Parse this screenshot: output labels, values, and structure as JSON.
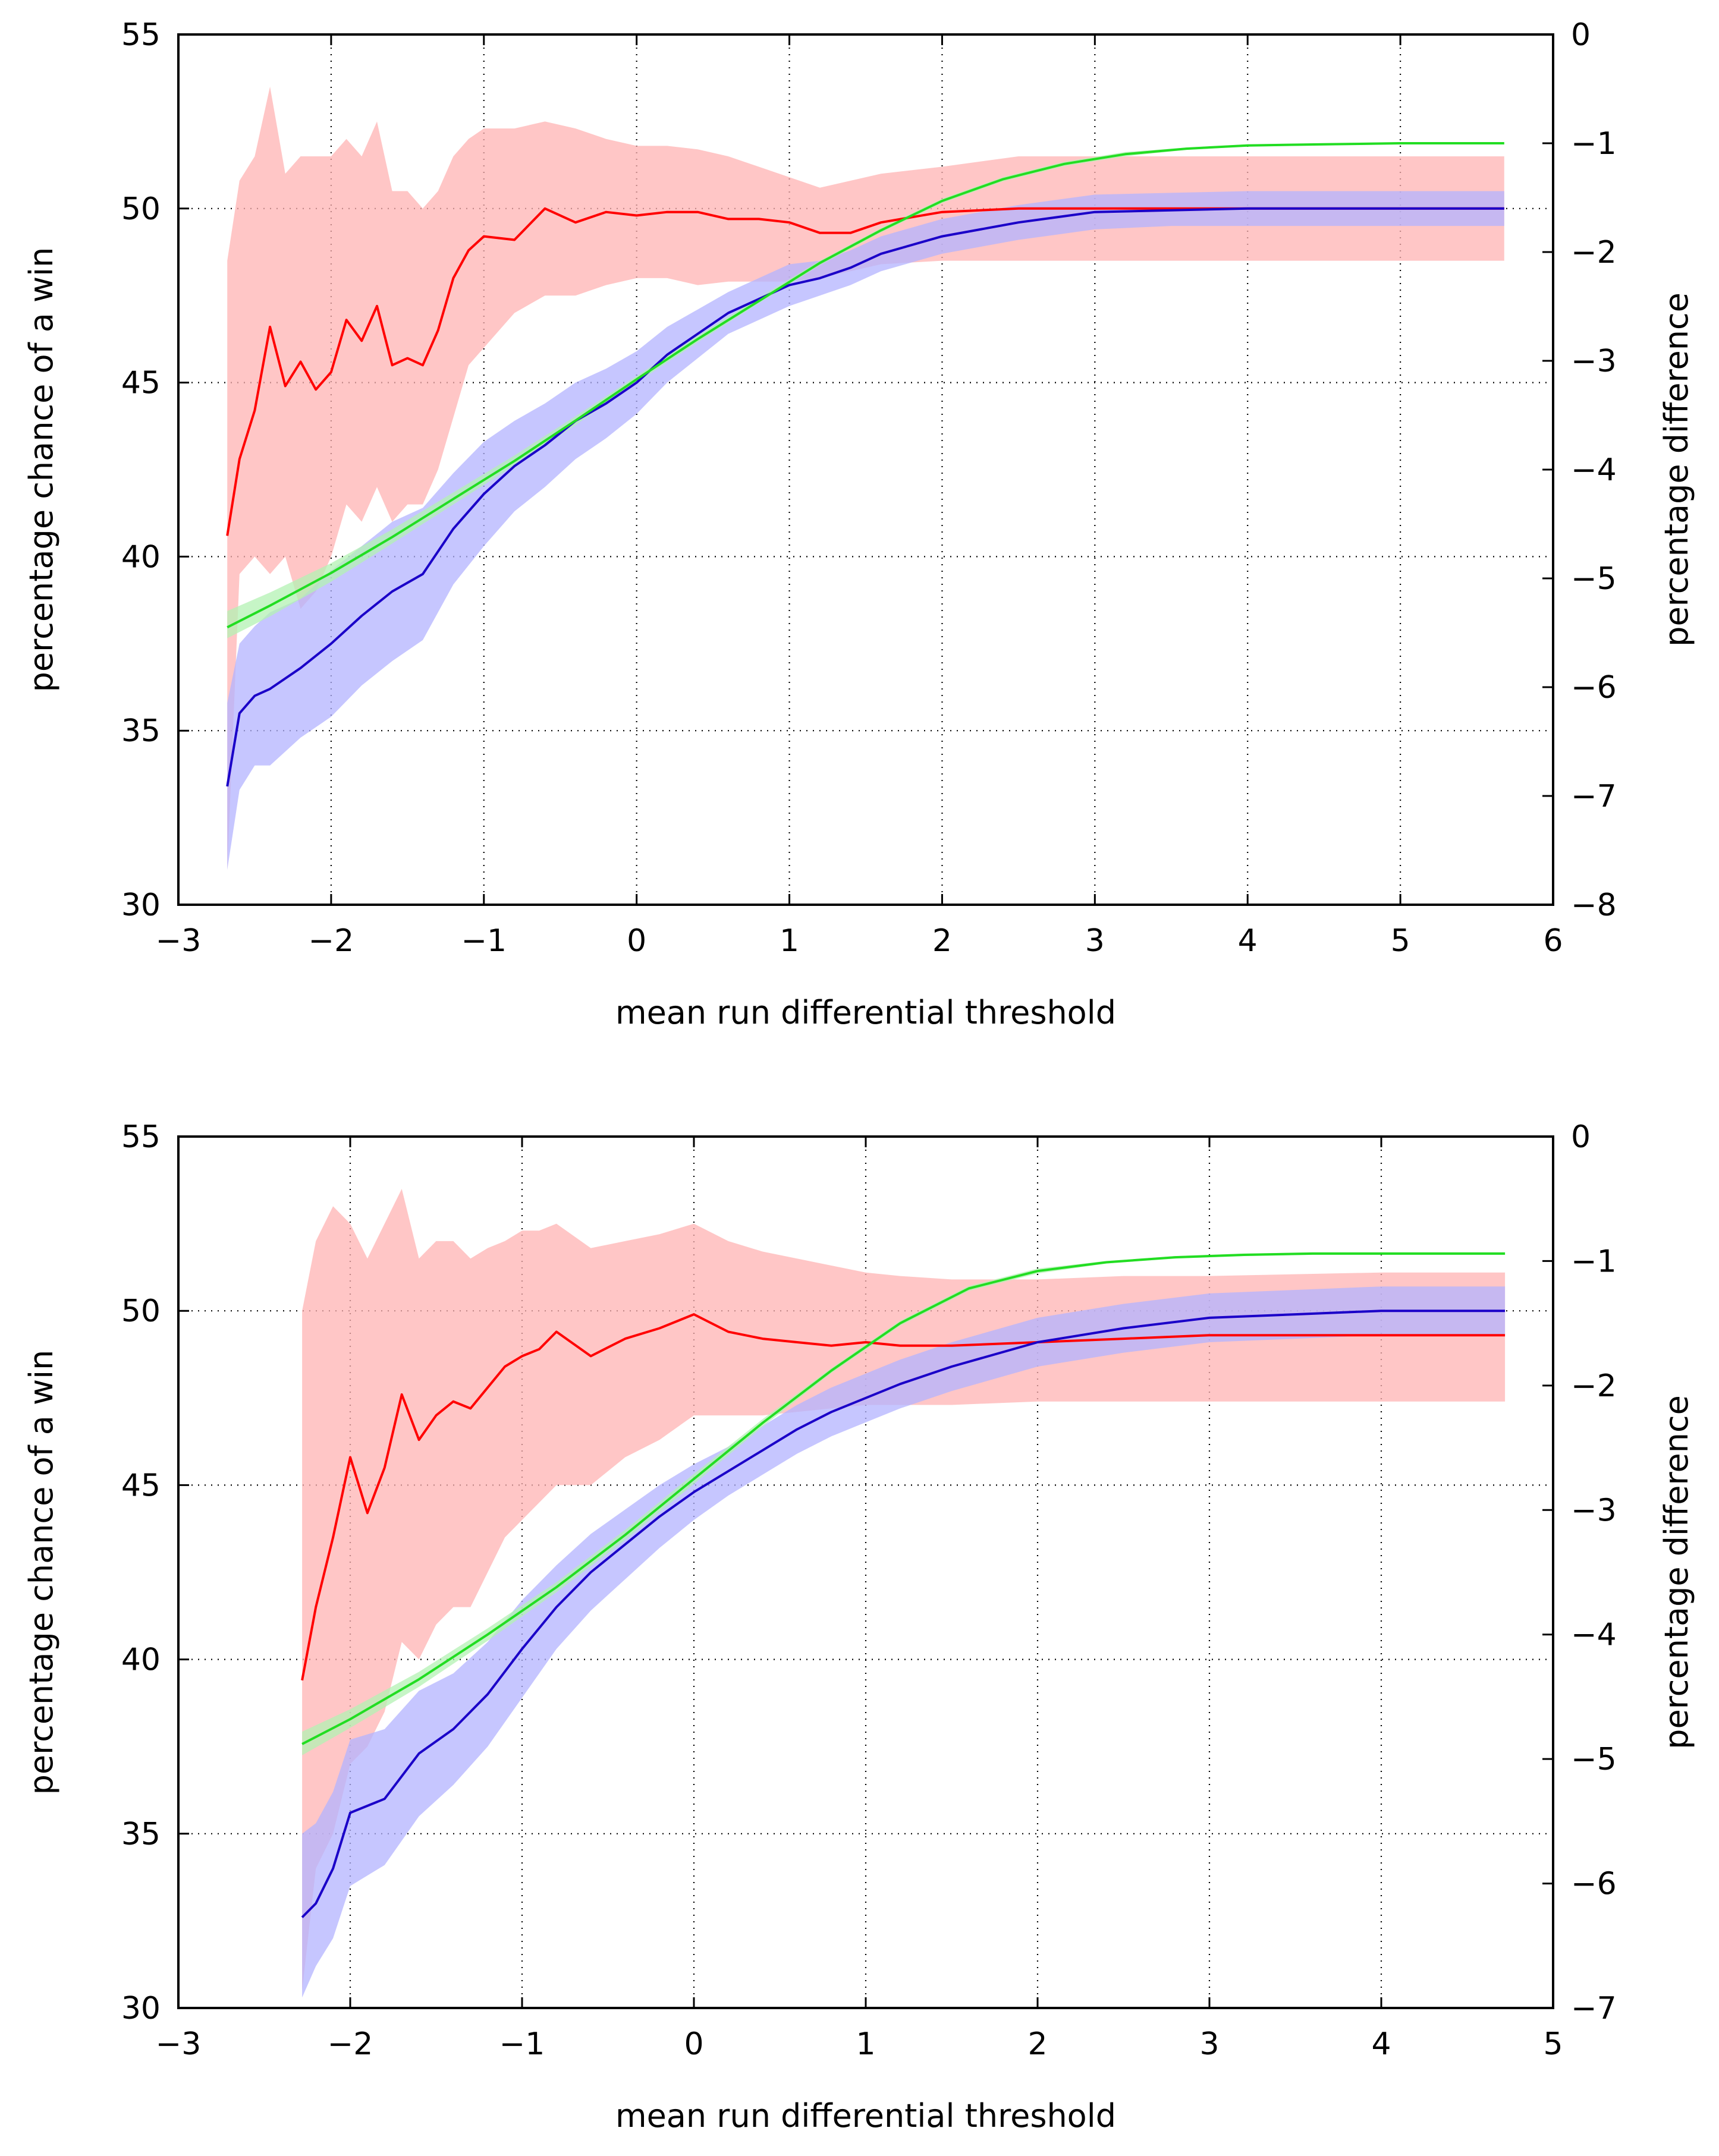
{
  "chart_data": [
    {
      "type": "line",
      "xlabel": "mean run differential threshold",
      "ylabel": "percentage chance of a win",
      "y2label": "percentage difference",
      "xlim": [
        -3,
        6
      ],
      "ylim": [
        30,
        55
      ],
      "y2lim": [
        -8,
        0
      ],
      "xticks": [
        -3,
        -2,
        -1,
        0,
        1,
        2,
        3,
        4,
        5,
        6
      ],
      "yticks": [
        30,
        35,
        40,
        45,
        50,
        55
      ],
      "y2ticks": [
        -8,
        -7,
        -6,
        -5,
        -4,
        -3,
        -2,
        -1,
        0
      ],
      "xtick_labels": [
        "−3",
        "−2",
        "−1",
        "0",
        "1",
        "2",
        "3",
        "4",
        "5",
        "6"
      ],
      "ytick_labels": [
        "30",
        "35",
        "40",
        "45",
        "50",
        "55"
      ],
      "y2tick_labels": [
        "−8",
        "−7",
        "−6",
        "−5",
        "−4",
        "−3",
        "−2",
        "−1",
        "0"
      ],
      "grid": true,
      "series": [
        {
          "name": "red",
          "axis": "left",
          "color": "#ff0000",
          "band_color": "#ffb3b3",
          "x": [
            -2.68,
            -2.6,
            -2.5,
            -2.4,
            -2.3,
            -2.2,
            -2.1,
            -2.0,
            -1.9,
            -1.8,
            -1.7,
            -1.6,
            -1.5,
            -1.4,
            -1.3,
            -1.2,
            -1.1,
            -1.0,
            -0.8,
            -0.6,
            -0.4,
            -0.2,
            0.0,
            0.2,
            0.4,
            0.6,
            0.8,
            1.0,
            1.2,
            1.4,
            1.6,
            2.0,
            2.5,
            3.0,
            4.0,
            5.0,
            5.68
          ],
          "y": [
            40.6,
            42.8,
            44.2,
            46.6,
            44.9,
            45.6,
            44.8,
            45.3,
            46.8,
            46.2,
            47.2,
            45.5,
            45.7,
            45.5,
            46.5,
            48.0,
            48.8,
            49.2,
            49.1,
            50.0,
            49.6,
            49.9,
            49.8,
            49.9,
            49.9,
            49.7,
            49.7,
            49.6,
            49.3,
            49.3,
            49.6,
            49.9,
            50.0,
            50.0,
            50.0,
            50.0,
            50.0
          ],
          "lower": [
            31.0,
            39.5,
            40.0,
            39.5,
            40.0,
            38.5,
            39.0,
            40.0,
            41.5,
            41.0,
            42.0,
            41.0,
            41.5,
            41.5,
            42.5,
            44.0,
            45.5,
            46.0,
            47.0,
            47.5,
            47.5,
            47.8,
            48.0,
            48.0,
            47.8,
            47.9,
            47.9,
            47.9,
            48.0,
            48.2,
            48.4,
            48.5,
            48.5,
            48.5,
            48.5,
            48.5,
            48.5
          ],
          "upper": [
            48.5,
            50.8,
            51.5,
            53.5,
            51.0,
            51.5,
            51.5,
            51.5,
            52.0,
            51.5,
            52.5,
            50.5,
            50.5,
            50.0,
            50.5,
            51.5,
            52.0,
            52.3,
            52.3,
            52.5,
            52.3,
            52.0,
            51.8,
            51.8,
            51.7,
            51.5,
            51.2,
            50.9,
            50.6,
            50.8,
            51.0,
            51.2,
            51.5,
            51.5,
            51.5,
            51.5,
            51.5
          ]
        },
        {
          "name": "blue",
          "axis": "left",
          "color": "#1a00c8",
          "band_color": "#b3b3ff",
          "x": [
            -2.68,
            -2.6,
            -2.5,
            -2.4,
            -2.2,
            -2.0,
            -1.8,
            -1.6,
            -1.4,
            -1.2,
            -1.0,
            -0.8,
            -0.6,
            -0.4,
            -0.2,
            0.0,
            0.2,
            0.4,
            0.6,
            0.8,
            1.0,
            1.2,
            1.4,
            1.6,
            2.0,
            2.5,
            3.0,
            3.5,
            4.0,
            5.0,
            5.68
          ],
          "y": [
            33.4,
            35.5,
            36.0,
            36.2,
            36.8,
            37.5,
            38.3,
            39.0,
            39.5,
            40.8,
            41.8,
            42.6,
            43.2,
            43.9,
            44.4,
            45.0,
            45.8,
            46.4,
            47.0,
            47.4,
            47.8,
            48.0,
            48.3,
            48.7,
            49.2,
            49.6,
            49.9,
            49.95,
            50.0,
            50.0,
            50.0
          ],
          "lower": [
            31.0,
            33.3,
            34.0,
            34.0,
            34.8,
            35.4,
            36.3,
            37.0,
            37.6,
            39.2,
            40.3,
            41.3,
            42.0,
            42.8,
            43.4,
            44.1,
            45.0,
            45.7,
            46.4,
            46.8,
            47.2,
            47.5,
            47.8,
            48.2,
            48.7,
            49.1,
            49.4,
            49.5,
            49.5,
            49.5,
            49.5
          ],
          "upper": [
            35.8,
            37.5,
            38.0,
            38.4,
            38.8,
            39.6,
            40.3,
            41.0,
            41.4,
            42.4,
            43.3,
            43.9,
            44.4,
            45.0,
            45.4,
            45.9,
            46.6,
            47.1,
            47.6,
            48.0,
            48.4,
            48.5,
            48.8,
            49.2,
            49.7,
            50.1,
            50.4,
            50.45,
            50.5,
            50.5,
            50.5
          ]
        },
        {
          "name": "green",
          "axis": "right",
          "color": "#22dd22",
          "band_color": "#b3f2b3",
          "x": [
            -2.68,
            -2.4,
            -2.0,
            -1.6,
            -1.2,
            -0.8,
            -0.4,
            0.0,
            0.4,
            0.8,
            1.2,
            1.6,
            2.0,
            2.4,
            2.8,
            3.2,
            3.6,
            4.0,
            4.5,
            5.0,
            5.68
          ],
          "y": [
            -5.45,
            -5.25,
            -4.95,
            -4.62,
            -4.27,
            -3.92,
            -3.55,
            -3.17,
            -2.8,
            -2.45,
            -2.1,
            -1.8,
            -1.53,
            -1.33,
            -1.19,
            -1.1,
            -1.05,
            -1.02,
            -1.01,
            -1.0,
            -1.0
          ],
          "lower": [
            -5.55,
            -5.35,
            -5.03,
            -4.68,
            -4.32,
            -3.96,
            -3.59,
            -3.2,
            -2.83,
            -2.47,
            -2.12,
            -1.82,
            -1.55,
            -1.35,
            -1.21,
            -1.12,
            -1.06,
            -1.03,
            -1.02,
            -1.01,
            -1.01
          ],
          "upper": [
            -5.3,
            -5.13,
            -4.86,
            -4.55,
            -4.21,
            -3.87,
            -3.51,
            -3.14,
            -2.77,
            -2.42,
            -2.08,
            -1.78,
            -1.51,
            -1.31,
            -1.17,
            -1.08,
            -1.04,
            -1.01,
            -1.0,
            -0.99,
            -0.99
          ]
        }
      ]
    },
    {
      "type": "line",
      "xlabel": "mean run differential threshold",
      "ylabel": "percentage chance of a win",
      "y2label": "percentage difference",
      "xlim": [
        -3,
        5
      ],
      "ylim": [
        30,
        55
      ],
      "y2lim": [
        -7,
        0
      ],
      "xticks": [
        -3,
        -2,
        -1,
        0,
        1,
        2,
        3,
        4,
        5
      ],
      "yticks": [
        30,
        35,
        40,
        45,
        50,
        55
      ],
      "y2ticks": [
        -7,
        -6,
        -5,
        -4,
        -3,
        -2,
        -1,
        0
      ],
      "xtick_labels": [
        "−3",
        "−2",
        "−1",
        "0",
        "1",
        "2",
        "3",
        "4",
        "5"
      ],
      "ytick_labels": [
        "30",
        "35",
        "40",
        "45",
        "50",
        "55"
      ],
      "y2tick_labels": [
        "−7",
        "−6",
        "−5",
        "−4",
        "−3",
        "−2",
        "−1",
        "0"
      ],
      "grid": true,
      "series": [
        {
          "name": "red",
          "axis": "left",
          "color": "#ff0000",
          "band_color": "#ffb3b3",
          "x": [
            -2.28,
            -2.2,
            -2.1,
            -2.0,
            -1.9,
            -1.8,
            -1.7,
            -1.6,
            -1.5,
            -1.4,
            -1.3,
            -1.2,
            -1.1,
            -1.0,
            -0.9,
            -0.8,
            -0.6,
            -0.4,
            -0.2,
            0.0,
            0.2,
            0.4,
            0.6,
            0.8,
            1.0,
            1.2,
            1.5,
            2.0,
            2.5,
            3.0,
            4.0,
            4.72
          ],
          "y": [
            39.4,
            41.5,
            43.5,
            45.8,
            44.2,
            45.5,
            47.6,
            46.3,
            47.0,
            47.4,
            47.2,
            47.8,
            48.4,
            48.7,
            48.9,
            49.4,
            48.7,
            49.2,
            49.5,
            49.9,
            49.4,
            49.2,
            49.1,
            49.0,
            49.1,
            49.0,
            49.0,
            49.1,
            49.2,
            49.3,
            49.3,
            49.3
          ],
          "lower": [
            30.5,
            34.0,
            35.0,
            37.0,
            37.5,
            38.5,
            40.5,
            40.0,
            41.0,
            41.5,
            41.5,
            42.5,
            43.5,
            44.0,
            44.5,
            45.0,
            45.0,
            45.8,
            46.3,
            47.0,
            47.0,
            47.0,
            47.1,
            47.2,
            47.3,
            47.3,
            47.3,
            47.4,
            47.4,
            47.4,
            47.4,
            47.4
          ],
          "upper": [
            50.0,
            52.0,
            53.0,
            52.5,
            51.5,
            52.5,
            53.5,
            51.5,
            52.0,
            52.0,
            51.5,
            51.8,
            52.0,
            52.3,
            52.3,
            52.5,
            51.8,
            52.0,
            52.2,
            52.5,
            52.0,
            51.7,
            51.5,
            51.3,
            51.1,
            51.0,
            50.9,
            50.9,
            51.0,
            51.0,
            51.1,
            51.1
          ]
        },
        {
          "name": "blue",
          "axis": "left",
          "color": "#1a00c8",
          "band_color": "#b3b3ff",
          "x": [
            -2.28,
            -2.2,
            -2.1,
            -2.0,
            -1.8,
            -1.6,
            -1.4,
            -1.2,
            -1.0,
            -0.8,
            -0.6,
            -0.4,
            -0.2,
            0.0,
            0.2,
            0.4,
            0.6,
            0.8,
            1.0,
            1.2,
            1.5,
            2.0,
            2.5,
            3.0,
            3.5,
            4.0,
            4.72
          ],
          "y": [
            32.6,
            33.0,
            34.0,
            35.6,
            36.0,
            37.3,
            38.0,
            39.0,
            40.3,
            41.5,
            42.5,
            43.3,
            44.1,
            44.8,
            45.4,
            46.0,
            46.6,
            47.1,
            47.5,
            47.9,
            48.4,
            49.1,
            49.5,
            49.8,
            49.9,
            50.0,
            50.0
          ],
          "lower": [
            30.3,
            31.2,
            32.0,
            33.5,
            34.1,
            35.5,
            36.4,
            37.5,
            38.9,
            40.3,
            41.4,
            42.3,
            43.2,
            44.0,
            44.7,
            45.3,
            45.9,
            46.4,
            46.8,
            47.2,
            47.7,
            48.4,
            48.8,
            49.1,
            49.2,
            49.3,
            49.3
          ],
          "upper": [
            35.0,
            35.3,
            36.2,
            37.7,
            38.0,
            39.1,
            39.6,
            40.5,
            41.7,
            42.7,
            43.6,
            44.3,
            45.0,
            45.6,
            46.1,
            46.7,
            47.3,
            47.8,
            48.2,
            48.6,
            49.1,
            49.8,
            50.2,
            50.5,
            50.6,
            50.7,
            50.7
          ]
        },
        {
          "name": "green",
          "axis": "right",
          "color": "#22dd22",
          "band_color": "#b3f2b3",
          "x": [
            -2.28,
            -2.0,
            -1.6,
            -1.2,
            -0.8,
            -0.4,
            0.0,
            0.4,
            0.8,
            1.2,
            1.6,
            2.0,
            2.4,
            2.8,
            3.2,
            3.6,
            4.0,
            4.4,
            4.72
          ],
          "y": [
            -4.88,
            -4.68,
            -4.36,
            -4.0,
            -3.62,
            -3.2,
            -2.75,
            -2.3,
            -1.88,
            -1.5,
            -1.22,
            -1.08,
            -1.01,
            -0.97,
            -0.95,
            -0.94,
            -0.94,
            -0.94,
            -0.94
          ],
          "lower": [
            -4.97,
            -4.75,
            -4.42,
            -4.05,
            -3.66,
            -3.24,
            -2.79,
            -2.33,
            -1.9,
            -1.52,
            -1.24,
            -1.1,
            -1.02,
            -0.98,
            -0.96,
            -0.95,
            -0.95,
            -0.95,
            -0.95
          ],
          "upper": [
            -4.78,
            -4.6,
            -4.3,
            -3.95,
            -3.58,
            -3.16,
            -2.71,
            -2.27,
            -1.86,
            -1.48,
            -1.2,
            -1.06,
            -1.0,
            -0.96,
            -0.94,
            -0.93,
            -0.93,
            -0.93,
            -0.93
          ]
        }
      ]
    }
  ]
}
